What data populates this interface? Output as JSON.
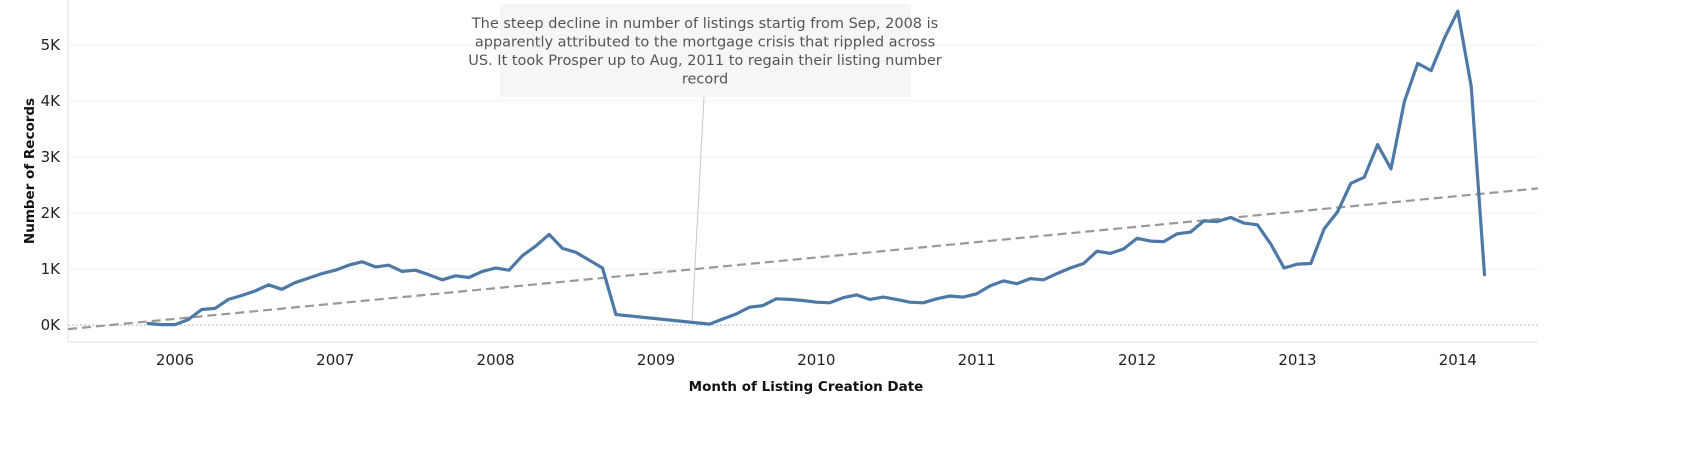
{
  "chart_data": {
    "type": "line",
    "title": "",
    "xlabel": "Month of Listing Creation Date",
    "ylabel": "Number of Records",
    "x_tick_labels": [
      "2006",
      "2007",
      "2008",
      "2009",
      "2010",
      "2011",
      "2012",
      "2013",
      "2014"
    ],
    "y_tick_labels": [
      "0K",
      "1K",
      "2K",
      "3K",
      "4K",
      "5K"
    ],
    "y_ticks": [
      0,
      1000,
      2000,
      3000,
      4000,
      5000
    ],
    "xlim": [
      "2005-05",
      "2014-07"
    ],
    "ylim": [
      -300,
      5800
    ],
    "grid": true,
    "series": [
      {
        "color": "#4e79a7",
        "points": [
          [
            "2005-11",
            30
          ],
          [
            "2005-12",
            10
          ],
          [
            "2006-01",
            10
          ],
          [
            "2006-02",
            100
          ],
          [
            "2006-03",
            280
          ],
          [
            "2006-04",
            300
          ],
          [
            "2006-05",
            460
          ],
          [
            "2006-06",
            530
          ],
          [
            "2006-07",
            610
          ],
          [
            "2006-08",
            720
          ],
          [
            "2006-09",
            640
          ],
          [
            "2006-10",
            760
          ],
          [
            "2006-11",
            840
          ],
          [
            "2006-12",
            920
          ],
          [
            "2007-01",
            980
          ],
          [
            "2007-02",
            1070
          ],
          [
            "2007-03",
            1130
          ],
          [
            "2007-04",
            1040
          ],
          [
            "2007-05",
            1070
          ],
          [
            "2007-06",
            960
          ],
          [
            "2007-07",
            980
          ],
          [
            "2007-08",
            900
          ],
          [
            "2007-09",
            810
          ],
          [
            "2007-10",
            880
          ],
          [
            "2007-11",
            850
          ],
          [
            "2007-12",
            960
          ],
          [
            "2008-01",
            1020
          ],
          [
            "2008-02",
            980
          ],
          [
            "2008-03",
            1240
          ],
          [
            "2008-04",
            1410
          ],
          [
            "2008-05",
            1620
          ],
          [
            "2008-06",
            1370
          ],
          [
            "2008-07",
            1300
          ],
          [
            "2008-08",
            1160
          ],
          [
            "2008-09",
            1020
          ],
          [
            "2008-10",
            190
          ],
          [
            "2009-05",
            20
          ],
          [
            "2009-06",
            110
          ],
          [
            "2009-07",
            200
          ],
          [
            "2009-08",
            320
          ],
          [
            "2009-09",
            350
          ],
          [
            "2009-10",
            470
          ],
          [
            "2009-11",
            460
          ],
          [
            "2009-12",
            440
          ],
          [
            "2010-01",
            410
          ],
          [
            "2010-02",
            400
          ],
          [
            "2010-03",
            490
          ],
          [
            "2010-04",
            540
          ],
          [
            "2010-05",
            460
          ],
          [
            "2010-06",
            500
          ],
          [
            "2010-07",
            460
          ],
          [
            "2010-08",
            410
          ],
          [
            "2010-09",
            400
          ],
          [
            "2010-10",
            470
          ],
          [
            "2010-11",
            520
          ],
          [
            "2010-12",
            500
          ],
          [
            "2011-01",
            560
          ],
          [
            "2011-02",
            700
          ],
          [
            "2011-03",
            790
          ],
          [
            "2011-04",
            740
          ],
          [
            "2011-05",
            830
          ],
          [
            "2011-06",
            810
          ],
          [
            "2011-07",
            920
          ],
          [
            "2011-08",
            1020
          ],
          [
            "2011-09",
            1100
          ],
          [
            "2011-10",
            1320
          ],
          [
            "2011-11",
            1280
          ],
          [
            "2011-12",
            1360
          ],
          [
            "2012-01",
            1550
          ],
          [
            "2012-02",
            1500
          ],
          [
            "2012-03",
            1490
          ],
          [
            "2012-04",
            1630
          ],
          [
            "2012-05",
            1660
          ],
          [
            "2012-06",
            1860
          ],
          [
            "2012-07",
            1850
          ],
          [
            "2012-08",
            1920
          ],
          [
            "2012-09",
            1820
          ],
          [
            "2012-10",
            1790
          ],
          [
            "2012-11",
            1450
          ],
          [
            "2012-12",
            1020
          ],
          [
            "2013-01",
            1090
          ],
          [
            "2013-02",
            1100
          ],
          [
            "2013-03",
            1720
          ],
          [
            "2013-04",
            2020
          ],
          [
            "2013-05",
            2530
          ],
          [
            "2013-06",
            2640
          ],
          [
            "2013-07",
            3220
          ],
          [
            "2013-08",
            2790
          ],
          [
            "2013-09",
            3990
          ],
          [
            "2013-10",
            4670
          ],
          [
            "2013-11",
            4540
          ],
          [
            "2013-12",
            5120
          ],
          [
            "2014-01",
            5600
          ],
          [
            "2014-02",
            4260
          ],
          [
            "2014-03",
            900
          ]
        ]
      }
    ],
    "trend_line": {
      "style": "dashed",
      "color": "#999999",
      "from": [
        "2005-05",
        -70
      ],
      "to": [
        "2014-07",
        2440
      ]
    },
    "annotation": {
      "text_lines": [
        "The steep decline in number of listings startig from Sep, 2008 is",
        "apparently attributed to the mortgage crisis that rippled across",
        "US. It took Prosper up to Aug, 2011 to regain their listing number",
        "record"
      ],
      "target": [
        "2009-04",
        20
      ]
    }
  }
}
